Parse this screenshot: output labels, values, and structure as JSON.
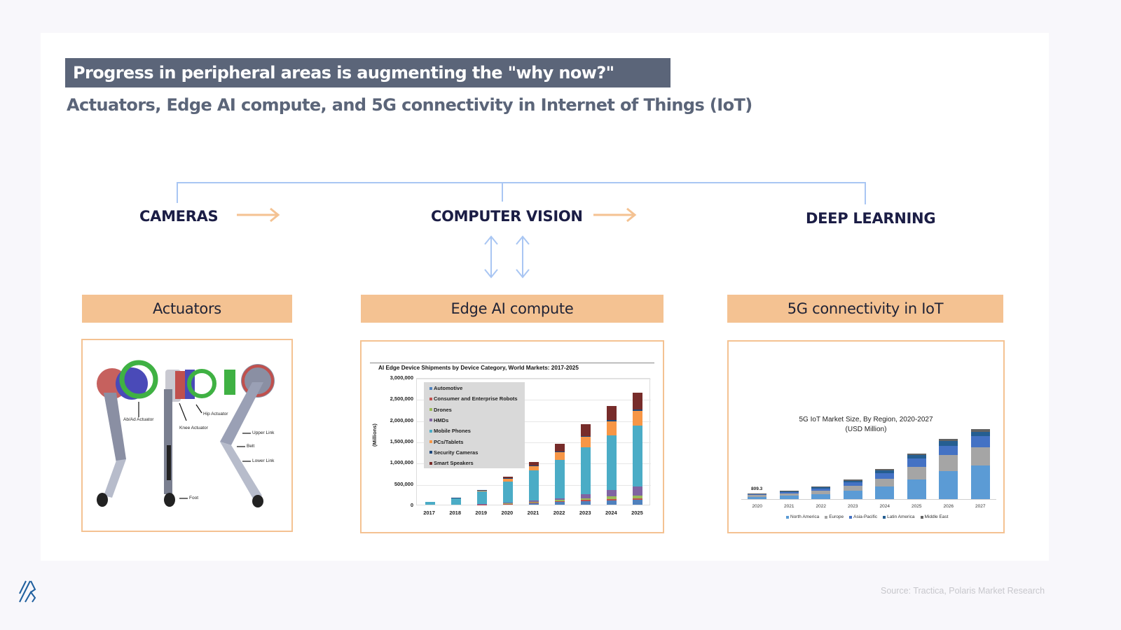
{
  "slide": {
    "title": "Progress in peripheral areas is augmenting the \"why now?\"",
    "subtitle": "Actuators, Edge AI compute, and 5G connectivity in Internet of Things (IoT)",
    "source": "Source: Tractica, Polaris Market Research",
    "colors": {
      "title_bar": "#5b6579",
      "accent_orange": "#f4c292",
      "connector_blue": "#a9c6f3",
      "flow_text": "#1b1d45",
      "logo_blue": "#1f5f9e"
    }
  },
  "flow": {
    "items": [
      {
        "label": "CAMERAS"
      },
      {
        "label": "COMPUTER VISION"
      },
      {
        "label": "DEEP LEARNING"
      }
    ],
    "arrow_icon": "right-arrow-icon",
    "bidirectional_icon": "up-down-arrow-icon"
  },
  "sections": [
    {
      "header": "Actuators"
    },
    {
      "header": "Edge AI compute"
    },
    {
      "header": "5G connectivity in IoT"
    }
  ],
  "actuators_image": {
    "labels": [
      "Ab/Ad Actuator",
      "Hip Actuator",
      "Knee Actuator",
      "Upper Link",
      "Belt",
      "Lower Link",
      "Foot"
    ]
  },
  "chart_data": [
    {
      "type": "bar",
      "stacked": true,
      "title": "AI Edge Device Shipments by Device Category, World Markets: 2017-2025",
      "xlabel": "",
      "ylabel": "(Millions)",
      "ylim": [
        0,
        3000000
      ],
      "yticks": [
        "3,000,000",
        "2,500,000",
        "2,000,000",
        "1,500,000",
        "1,000,000",
        "500,000",
        "0"
      ],
      "grid": true,
      "legend_position": "upper-left inside",
      "categories": [
        "2017",
        "2018",
        "2019",
        "2020",
        "2021",
        "2022",
        "2023",
        "2024",
        "2025"
      ],
      "series": [
        {
          "name": "Automotive",
          "color": "#4f81bd",
          "values": [
            0,
            0,
            5000,
            15000,
            40000,
            60000,
            80000,
            100000,
            110000
          ]
        },
        {
          "name": "Consumer and Enterprise Robots",
          "color": "#c0504d",
          "values": [
            0,
            0,
            2000,
            5000,
            10000,
            20000,
            30000,
            35000,
            40000
          ]
        },
        {
          "name": "Drones",
          "color": "#9bbb59",
          "values": [
            0,
            0,
            3000,
            10000,
            20000,
            30000,
            45000,
            55000,
            60000
          ]
        },
        {
          "name": "HMDs",
          "color": "#8064a2",
          "values": [
            0,
            0,
            10000,
            20000,
            30000,
            45000,
            100000,
            150000,
            220000
          ]
        },
        {
          "name": "Mobile Phones",
          "color": "#4bacc6",
          "values": [
            65000,
            155000,
            290000,
            500000,
            700000,
            900000,
            1100000,
            1290000,
            1430000
          ]
        },
        {
          "name": "PCs/Tablets",
          "color": "#f79646",
          "values": [
            0,
            0,
            30000,
            70000,
            110000,
            190000,
            240000,
            330000,
            350000
          ]
        },
        {
          "name": "Security Cameras",
          "color": "#1f497d",
          "values": [
            0,
            5000,
            5000,
            10000,
            10000,
            15000,
            20000,
            30000,
            40000
          ]
        },
        {
          "name": "Smart Speakers",
          "color": "#772c2a",
          "values": [
            0,
            0,
            0,
            30000,
            90000,
            180000,
            275000,
            340000,
            380000
          ]
        }
      ]
    },
    {
      "type": "bar",
      "stacked": true,
      "title": "5G IoT Market Size, By Region, 2020-2027",
      "subtitle": "(USD Million)",
      "xlabel": "",
      "ylabel": "",
      "grid": false,
      "legend_position": "bottom",
      "annotations": [
        {
          "x": "2020",
          "text": "809.3"
        }
      ],
      "categories": [
        "2020",
        "2021",
        "2022",
        "2023",
        "2024",
        "2025",
        "2026",
        "2027"
      ],
      "series": [
        {
          "name": "North America",
          "color": "#5b9bd5",
          "values": [
            320,
            470,
            700,
            1100,
            1700,
            2700,
            3800,
            4600
          ]
        },
        {
          "name": "Europe",
          "color": "#a5a5a5",
          "values": [
            220,
            300,
            450,
            700,
            1100,
            1700,
            2200,
            2500
          ]
        },
        {
          "name": "Asia-Pacific",
          "color": "#4472c4",
          "values": [
            140,
            200,
            300,
            470,
            750,
            1100,
            1300,
            1450
          ]
        },
        {
          "name": "Latin America",
          "color": "#255e91",
          "values": [
            80,
            110,
            160,
            250,
            360,
            500,
            630,
            650
          ]
        },
        {
          "name": "Middle East",
          "color": "#636363",
          "values": [
            49,
            70,
            90,
            130,
            190,
            250,
            300,
            350
          ]
        }
      ]
    }
  ]
}
